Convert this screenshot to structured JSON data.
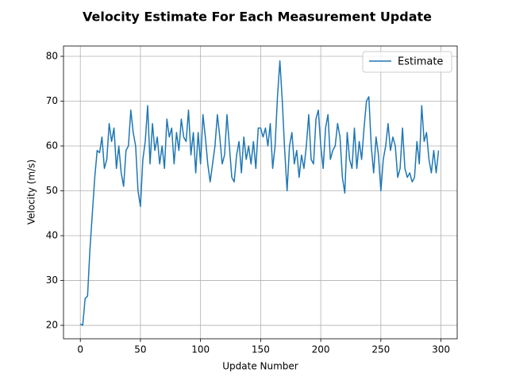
{
  "chart_data": {
    "type": "line",
    "title": "Velocity Estimate For Each Measurement Update",
    "xlabel": "Update Number",
    "ylabel": "Velocity (m/s)",
    "x": [
      0,
      2,
      4,
      6,
      8,
      10,
      12,
      14,
      16,
      18,
      20,
      22,
      24,
      26,
      28,
      30,
      32,
      34,
      36,
      38,
      40,
      42,
      44,
      46,
      48,
      50,
      52,
      54,
      56,
      58,
      60,
      62,
      64,
      66,
      68,
      70,
      72,
      74,
      76,
      78,
      80,
      82,
      84,
      86,
      88,
      90,
      92,
      94,
      96,
      98,
      100,
      102,
      104,
      106,
      108,
      110,
      112,
      114,
      116,
      118,
      120,
      122,
      124,
      126,
      128,
      130,
      132,
      134,
      136,
      138,
      140,
      142,
      144,
      146,
      148,
      150,
      152,
      154,
      156,
      158,
      160,
      162,
      164,
      166,
      168,
      170,
      172,
      174,
      176,
      178,
      180,
      182,
      184,
      186,
      188,
      190,
      192,
      194,
      196,
      198,
      200,
      202,
      204,
      206,
      208,
      210,
      212,
      214,
      216,
      218,
      220,
      222,
      224,
      226,
      228,
      230,
      232,
      234,
      236,
      238,
      240,
      242,
      244,
      246,
      248,
      250,
      252,
      254,
      256,
      258,
      260,
      262,
      264,
      266,
      268,
      270,
      272,
      274,
      276,
      278,
      280,
      282,
      284,
      286,
      288,
      290,
      292,
      294,
      296,
      298
    ],
    "series": [
      {
        "name": "Estimate",
        "color": "#1f77b4",
        "values": [
          20.3,
          20,
          26,
          26.5,
          37,
          45,
          53,
          59,
          58.5,
          62,
          55,
          57,
          65,
          61,
          64,
          55,
          60,
          54,
          51,
          59,
          60,
          68,
          63,
          60,
          50,
          46.5,
          57,
          61,
          69,
          56,
          65,
          59,
          62,
          56,
          60,
          55,
          66,
          62,
          64,
          56,
          63,
          59,
          66,
          62,
          61,
          68,
          58,
          63,
          54,
          63,
          56,
          67,
          62,
          56,
          52,
          56,
          60,
          67,
          62,
          56,
          58,
          67,
          60,
          53,
          52,
          58,
          61,
          54,
          62,
          57,
          60,
          56,
          61,
          55,
          64,
          64,
          62,
          64,
          60,
          65,
          55,
          60,
          71,
          79,
          70,
          59,
          50,
          60,
          63,
          56,
          59,
          53,
          58,
          55,
          60,
          67,
          57,
          56,
          66,
          68,
          60,
          55,
          64,
          67,
          57,
          59,
          60,
          65,
          62,
          53,
          49.5,
          63,
          57,
          55,
          64,
          55,
          61,
          57,
          64,
          70,
          71,
          60,
          54,
          62,
          58,
          50,
          57,
          60,
          65,
          59,
          62,
          60,
          53,
          55,
          64,
          55,
          53,
          54,
          52,
          53,
          61,
          56,
          69,
          61,
          63,
          57,
          54,
          59,
          54,
          59
        ]
      }
    ],
    "xlim": [
      -14,
      313.5
    ],
    "ylim": [
      17,
      82.3
    ],
    "xticks": [
      0,
      50,
      100,
      150,
      200,
      250,
      300
    ],
    "yticks": [
      20,
      30,
      40,
      50,
      60,
      70,
      80
    ],
    "grid": true,
    "legend": "upper right"
  }
}
